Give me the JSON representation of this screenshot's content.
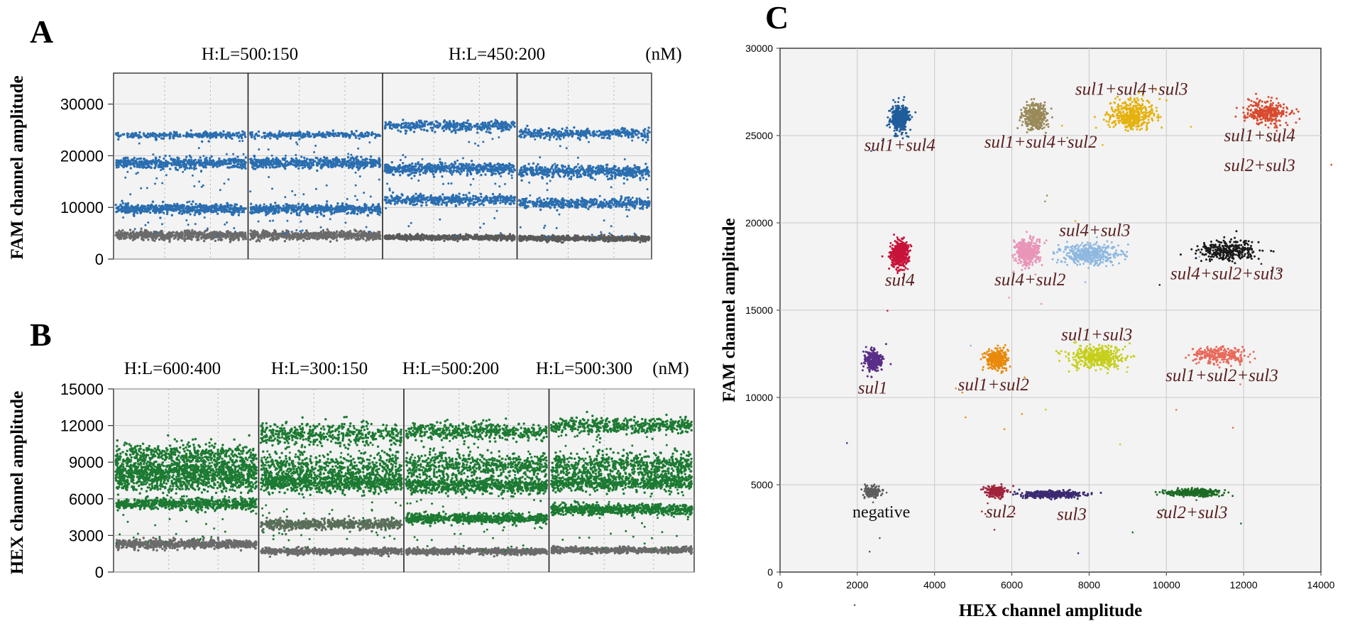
{
  "chart_data": [
    {
      "id": "A",
      "type": "scatter",
      "panel_label": "A",
      "ylabel": "FAM channel amplitude",
      "unit": "(nM)",
      "ylim": [
        0,
        36000
      ],
      "yticks": [
        0,
        10000,
        20000,
        30000
      ],
      "ytick_labels": [
        "0",
        "10000",
        "20000",
        "30000"
      ],
      "groups": [
        {
          "condition": "H:L=500:150",
          "wells": 2
        },
        {
          "condition": "H:L=450:200",
          "wells": 2
        }
      ],
      "wells": [
        {
          "bands": [
            {
              "y": 24000,
              "sd": 300,
              "color": "#2a6eb0",
              "n": 240
            },
            {
              "y": 18600,
              "sd": 500,
              "color": "#2a6eb0",
              "n": 520
            },
            {
              "y": 9700,
              "sd": 450,
              "color": "#2a6eb0",
              "n": 520
            },
            {
              "y": 4600,
              "sd": 400,
              "color": "#6b6b6b",
              "n": 620
            }
          ],
          "scatter": 70
        },
        {
          "bands": [
            {
              "y": 24000,
              "sd": 300,
              "color": "#2a6eb0",
              "n": 240
            },
            {
              "y": 18600,
              "sd": 500,
              "color": "#2a6eb0",
              "n": 520
            },
            {
              "y": 9700,
              "sd": 450,
              "color": "#2a6eb0",
              "n": 520
            },
            {
              "y": 4600,
              "sd": 400,
              "color": "#6b6b6b",
              "n": 620
            }
          ],
          "scatter": 70
        },
        {
          "bands": [
            {
              "y": 25800,
              "sd": 450,
              "color": "#2a6eb0",
              "n": 360
            },
            {
              "y": 17500,
              "sd": 500,
              "color": "#2a6eb0",
              "n": 520
            },
            {
              "y": 11500,
              "sd": 450,
              "color": "#2a6eb0",
              "n": 420
            },
            {
              "y": 4200,
              "sd": 250,
              "color": "#5a5a5a",
              "n": 620
            }
          ],
          "scatter": 60
        },
        {
          "bands": [
            {
              "y": 24300,
              "sd": 450,
              "color": "#2a6eb0",
              "n": 360
            },
            {
              "y": 17000,
              "sd": 550,
              "color": "#2a6eb0",
              "n": 520
            },
            {
              "y": 10800,
              "sd": 450,
              "color": "#2a6eb0",
              "n": 420
            },
            {
              "y": 4000,
              "sd": 250,
              "color": "#5a5a5a",
              "n": 620
            }
          ],
          "scatter": 60
        }
      ]
    },
    {
      "id": "B",
      "type": "scatter",
      "panel_label": "B",
      "ylabel": "HEX channel amplitude",
      "unit": "(nM)",
      "ylim": [
        0,
        15000
      ],
      "yticks": [
        0,
        3000,
        6000,
        9000,
        12000,
        15000
      ],
      "ytick_labels": [
        "0",
        "3000",
        "6000",
        "9000",
        "12000",
        "15000"
      ],
      "groups": [
        {
          "condition": "H:L=600:400",
          "wells": 1
        },
        {
          "condition": "H:L=300:150",
          "wells": 1
        },
        {
          "condition": "H:L=500:200",
          "wells": 1
        },
        {
          "condition": "H:L=500:300",
          "wells": 1
        }
      ],
      "wells": [
        {
          "bands": [
            {
              "y": 9600,
              "sd": 500,
              "color": "#1c7a32",
              "n": 500
            },
            {
              "y": 8300,
              "sd": 350,
              "color": "#1c7a32",
              "n": 700
            },
            {
              "y": 7400,
              "sd": 400,
              "color": "#1c7a32",
              "n": 500
            },
            {
              "y": 5600,
              "sd": 230,
              "color": "#1c7a32",
              "n": 600
            },
            {
              "y": 2300,
              "sd": 180,
              "color": "#6b6b6b",
              "n": 700
            }
          ],
          "scatter": 80
        },
        {
          "bands": [
            {
              "y": 11300,
              "sd": 500,
              "color": "#1c7a32",
              "n": 450
            },
            {
              "y": 8500,
              "sd": 700,
              "color": "#1c7a32",
              "n": 600
            },
            {
              "y": 7300,
              "sd": 350,
              "color": "#1c7a32",
              "n": 700
            },
            {
              "y": 3900,
              "sd": 200,
              "color": "#5a6e5a",
              "n": 650
            },
            {
              "y": 1700,
              "sd": 120,
              "color": "#6b6b6b",
              "n": 700
            }
          ],
          "scatter": 80
        },
        {
          "bands": [
            {
              "y": 11500,
              "sd": 350,
              "color": "#1c7a32",
              "n": 450
            },
            {
              "y": 8700,
              "sd": 500,
              "color": "#1c7a32",
              "n": 550
            },
            {
              "y": 7100,
              "sd": 350,
              "color": "#1c7a32",
              "n": 700
            },
            {
              "y": 4400,
              "sd": 200,
              "color": "#1c7a32",
              "n": 650
            },
            {
              "y": 1700,
              "sd": 120,
              "color": "#6b6b6b",
              "n": 700
            }
          ],
          "scatter": 80
        },
        {
          "bands": [
            {
              "y": 12000,
              "sd": 350,
              "color": "#1c7a32",
              "n": 450
            },
            {
              "y": 8800,
              "sd": 500,
              "color": "#1c7a32",
              "n": 550
            },
            {
              "y": 7400,
              "sd": 350,
              "color": "#1c7a32",
              "n": 700
            },
            {
              "y": 5100,
              "sd": 220,
              "color": "#1c7a32",
              "n": 650
            },
            {
              "y": 1800,
              "sd": 120,
              "color": "#6b6b6b",
              "n": 700
            }
          ],
          "scatter": 80
        }
      ]
    },
    {
      "id": "C",
      "type": "scatter",
      "panel_label": "C",
      "xlabel": "HEX channel amplitude",
      "ylabel": "FAM channel amplitude",
      "xlim": [
        0,
        14000
      ],
      "ylim": [
        0,
        30000
      ],
      "xticks": [
        0,
        2000,
        4000,
        6000,
        8000,
        10000,
        12000,
        14000
      ],
      "xtick_labels": [
        "0",
        "2000",
        "4000",
        "6000",
        "8000",
        "10000",
        "12000",
        "14000"
      ],
      "yticks": [
        0,
        5000,
        10000,
        15000,
        20000,
        25000,
        30000
      ],
      "ytick_labels": [
        "0",
        "5000",
        "10000",
        "15000",
        "20000",
        "25000",
        "30000"
      ],
      "clusters": [
        {
          "label": "negative",
          "italic": false,
          "x": 2400,
          "y": 4600,
          "sx": 120,
          "sy": 150,
          "n": 160,
          "color": "#5e5e5e"
        },
        {
          "label": "sul2",
          "italic": true,
          "x": 5600,
          "y": 4600,
          "sx": 130,
          "sy": 140,
          "n": 220,
          "color": "#a0233c"
        },
        {
          "label": "sul3",
          "italic": true,
          "x": 7000,
          "y": 4450,
          "sx": 380,
          "sy": 100,
          "n": 420,
          "color": "#3b2a72"
        },
        {
          "label": "sul2+sul3",
          "italic": true,
          "x": 10700,
          "y": 4550,
          "sx": 350,
          "sy": 100,
          "n": 350,
          "color": "#1d6b25"
        },
        {
          "label": "sul1",
          "italic": true,
          "x": 2400,
          "y": 12100,
          "sx": 110,
          "sy": 300,
          "n": 320,
          "color": "#5a2f88"
        },
        {
          "label": "sul1+sul2",
          "italic": true,
          "x": 5600,
          "y": 12200,
          "sx": 130,
          "sy": 280,
          "n": 380,
          "color": "#e98a0c"
        },
        {
          "label": "sul1+sul3",
          "italic": true,
          "x": 8200,
          "y": 12300,
          "sx": 340,
          "sy": 320,
          "n": 450,
          "color": "#c6cf1a"
        },
        {
          "label": "sul1+sul2+sul3",
          "italic": true,
          "x": 11400,
          "y": 12400,
          "sx": 380,
          "sy": 250,
          "n": 260,
          "color": "#e86a5c"
        },
        {
          "label": "sul4",
          "italic": true,
          "x": 3100,
          "y": 18200,
          "sx": 110,
          "sy": 380,
          "n": 450,
          "color": "#c8143a"
        },
        {
          "label": "sul4+sul2",
          "italic": true,
          "x": 6400,
          "y": 18300,
          "sx": 150,
          "sy": 380,
          "n": 380,
          "color": "#e895b8"
        },
        {
          "label": "sul4+sul3",
          "italic": true,
          "x": 8000,
          "y": 18200,
          "sx": 380,
          "sy": 300,
          "n": 420,
          "color": "#8eb8e0"
        },
        {
          "label": "sul4+sul2+sul3",
          "italic": true,
          "x": 11600,
          "y": 18400,
          "sx": 380,
          "sy": 300,
          "n": 330,
          "color": "#1a1a1a"
        },
        {
          "label": "sul1+sul4",
          "italic": true,
          "x": 3100,
          "y": 26000,
          "sx": 110,
          "sy": 380,
          "n": 400,
          "color": "#1f5c9a"
        },
        {
          "label": "sul1+sul4+sul2",
          "italic": true,
          "x": 6600,
          "y": 26100,
          "sx": 150,
          "sy": 380,
          "n": 360,
          "color": "#9a8a5a"
        },
        {
          "label": "sul1+sul4+sul3",
          "italic": true,
          "x": 9100,
          "y": 26200,
          "sx": 320,
          "sy": 420,
          "n": 400,
          "color": "#e5b10c"
        },
        {
          "label": "sul1+sul4\nsul2+sul3",
          "italic": true,
          "x": 12600,
          "y": 26300,
          "sx": 300,
          "sy": 330,
          "n": 300,
          "color": "#d84a2e"
        }
      ]
    }
  ]
}
